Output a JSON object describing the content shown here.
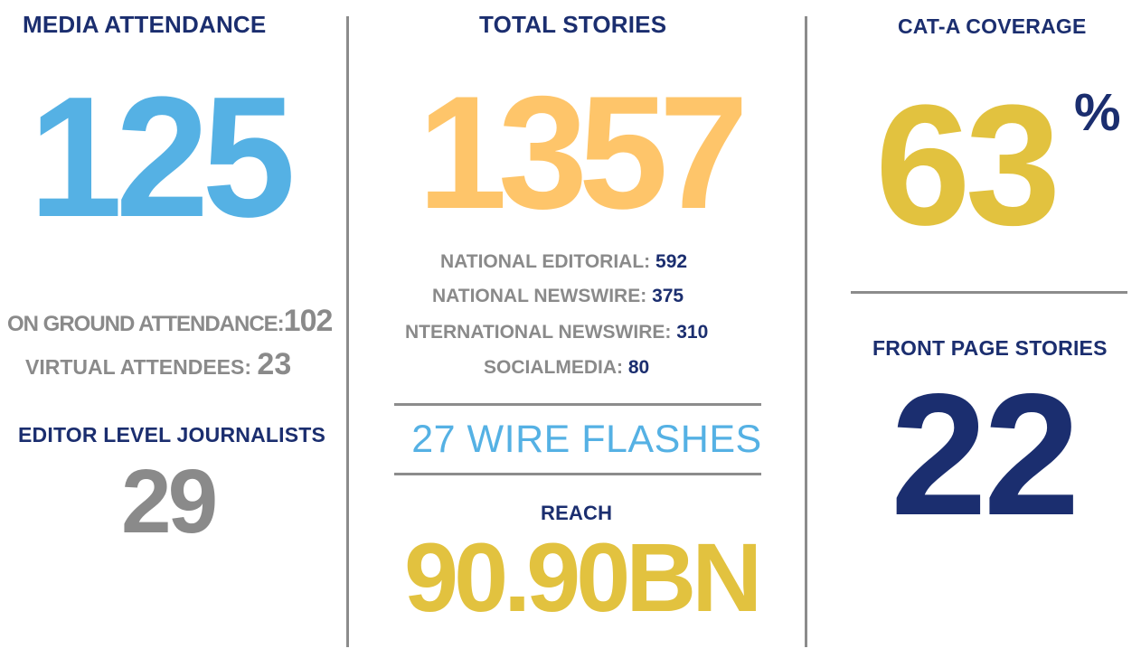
{
  "col1": {
    "heading": "MEDIA ATTENDANCE",
    "big_number": "125",
    "on_ground_label": "ON GROUND ATTENDANCE:",
    "on_ground_value": "102",
    "virtual_label": "VIRTUAL ATTENDEES:",
    "virtual_value": "23",
    "editor_heading": "EDITOR LEVEL JOURNALISTS",
    "editor_value": "29"
  },
  "col2": {
    "heading": "TOTAL STORIES",
    "big_number": "1357",
    "breakdown": [
      {
        "label": "NATIONAL EDITORIAL:",
        "value": "592"
      },
      {
        "label": "NATIONAL NEWSWIRE:",
        "value": "375"
      },
      {
        "label": "NTERNATIONAL NEWSWIRE:",
        "value": "310"
      },
      {
        "label": "SOCIALMEDIA:",
        "value": "80"
      }
    ],
    "wire_flashes": "27 WIRE FLASHES",
    "reach_heading": "REACH",
    "reach_value": "90.90BN"
  },
  "col3": {
    "heading": "CAT-A COVERAGE",
    "big_number": "63",
    "percent": "%",
    "front_page_heading": "FRONT PAGE STORIES",
    "front_page_value": "22"
  },
  "colors": {
    "navy": "#1b2e6f",
    "blue": "#55b1e4",
    "orange": "#fec56a",
    "gold": "#e2c23f",
    "grey": "#8a8a8a",
    "rule": "#8c8c8c"
  }
}
